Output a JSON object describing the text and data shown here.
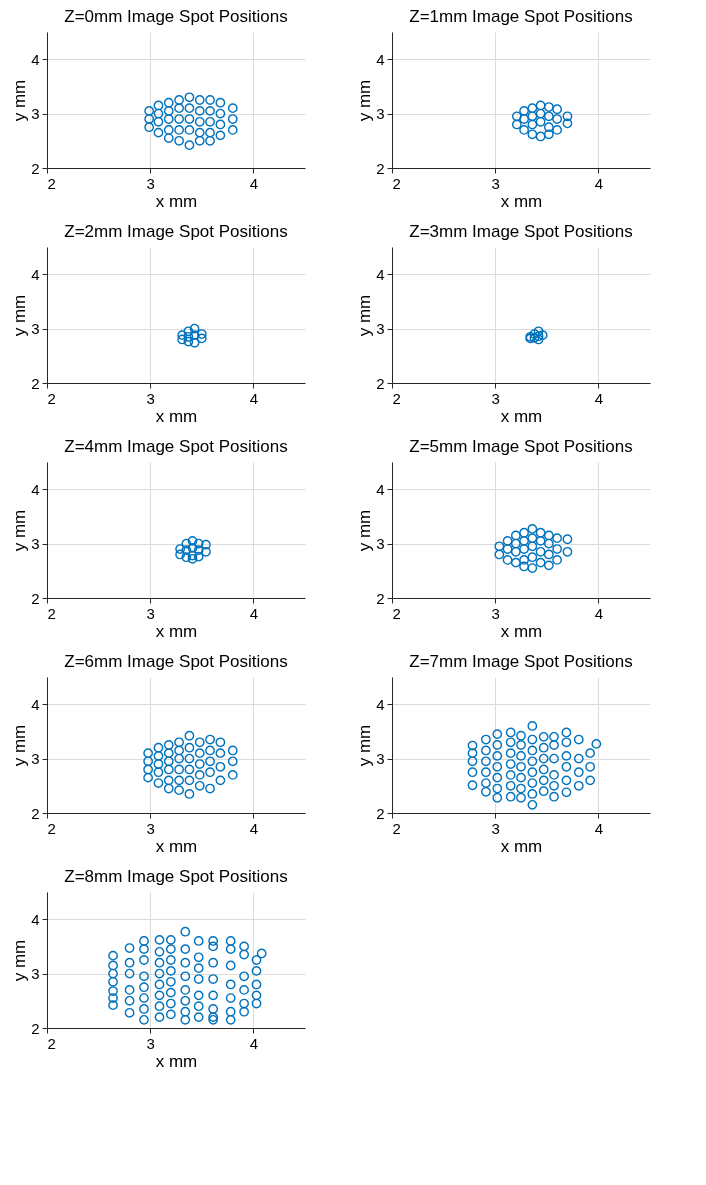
{
  "chart_data": [
    {
      "type": "scatter",
      "title": "Z=0mm Image Spot Positions",
      "xlabel": "x mm",
      "ylabel": "y mm",
      "xlim": [
        2,
        4.5
      ],
      "ylim": [
        2,
        4.5
      ],
      "xticks": [
        2,
        3,
        4
      ],
      "yticks": [
        2,
        3,
        4
      ],
      "grid": true,
      "marker": "circle",
      "color": "#0072bd",
      "x": [
        2.99,
        2.99,
        2.99,
        3.08,
        3.08,
        3.08,
        3.08,
        3.18,
        3.18,
        3.18,
        3.18,
        3.18,
        3.28,
        3.28,
        3.28,
        3.28,
        3.28,
        3.38,
        3.38,
        3.38,
        3.38,
        3.38,
        3.48,
        3.48,
        3.48,
        3.48,
        3.48,
        3.58,
        3.58,
        3.58,
        3.58,
        3.58,
        3.68,
        3.68,
        3.68,
        3.68,
        3.8,
        3.8,
        3.8
      ],
      "values": [
        3.05,
        2.9,
        2.75,
        3.15,
        3.0,
        2.85,
        2.65,
        3.2,
        3.05,
        2.9,
        2.7,
        2.55,
        3.25,
        3.1,
        2.9,
        2.7,
        2.5,
        3.3,
        3.1,
        2.9,
        2.7,
        2.42,
        3.25,
        3.05,
        2.85,
        2.65,
        2.5,
        3.25,
        3.05,
        2.85,
        2.65,
        2.5,
        3.2,
        3.0,
        2.8,
        2.6,
        3.1,
        2.9,
        2.7
      ]
    },
    {
      "type": "scatter",
      "title": "Z=1mm Image Spot Positions",
      "xlabel": "x mm",
      "ylabel": "y mm",
      "xlim": [
        2,
        4.5
      ],
      "ylim": [
        2,
        4.5
      ],
      "xticks": [
        2,
        3,
        4
      ],
      "yticks": [
        2,
        3,
        4
      ],
      "grid": true,
      "marker": "circle",
      "color": "#0072bd",
      "x": [
        3.21,
        3.21,
        3.28,
        3.28,
        3.28,
        3.36,
        3.36,
        3.36,
        3.36,
        3.44,
        3.44,
        3.44,
        3.44,
        3.52,
        3.52,
        3.52,
        3.52,
        3.6,
        3.6,
        3.6,
        3.7,
        3.7
      ],
      "values": [
        2.95,
        2.8,
        3.05,
        2.9,
        2.7,
        3.1,
        2.95,
        2.8,
        2.62,
        3.15,
        3.0,
        2.85,
        2.58,
        3.12,
        2.95,
        2.75,
        2.62,
        3.08,
        2.9,
        2.7,
        2.95,
        2.82
      ]
    },
    {
      "type": "scatter",
      "title": "Z=2mm Image Spot Positions",
      "xlabel": "x mm",
      "ylabel": "y mm",
      "xlim": [
        2,
        4.5
      ],
      "ylim": [
        2,
        4.5
      ],
      "xticks": [
        2,
        3,
        4
      ],
      "yticks": [
        2,
        3,
        4
      ],
      "grid": true,
      "marker": "circle",
      "color": "#0072bd",
      "x": [
        3.31,
        3.31,
        3.37,
        3.37,
        3.37,
        3.43,
        3.43,
        3.43,
        3.5,
        3.5
      ],
      "values": [
        2.88,
        2.8,
        2.95,
        2.85,
        2.76,
        3.0,
        2.88,
        2.74,
        2.9,
        2.82
      ]
    },
    {
      "type": "scatter",
      "title": "Z=3mm Image Spot Positions",
      "xlabel": "x mm",
      "ylabel": "y mm",
      "xlim": [
        2,
        4.5
      ],
      "ylim": [
        2,
        4.5
      ],
      "xticks": [
        2,
        3,
        4
      ],
      "yticks": [
        2,
        3,
        4
      ],
      "grid": true,
      "marker": "circle",
      "color": "#0072bd",
      "x": [
        3.34,
        3.34,
        3.38,
        3.38,
        3.42,
        3.42,
        3.42,
        3.46
      ],
      "values": [
        2.85,
        2.82,
        2.9,
        2.83,
        2.95,
        2.86,
        2.8,
        2.88
      ]
    },
    {
      "type": "scatter",
      "title": "Z=4mm Image Spot Positions",
      "xlabel": "x mm",
      "ylabel": "y mm",
      "xlim": [
        2,
        4.5
      ],
      "ylim": [
        2,
        4.5
      ],
      "xticks": [
        2,
        3,
        4
      ],
      "yticks": [
        2,
        3,
        4
      ],
      "grid": true,
      "marker": "circle",
      "color": "#0072bd",
      "x": [
        3.29,
        3.29,
        3.35,
        3.35,
        3.35,
        3.41,
        3.41,
        3.41,
        3.41,
        3.47,
        3.47,
        3.47,
        3.54,
        3.54
      ],
      "values": [
        2.9,
        2.8,
        3.0,
        2.88,
        2.75,
        3.05,
        2.92,
        2.78,
        2.72,
        3.0,
        2.88,
        2.76,
        2.98,
        2.85
      ]
    },
    {
      "type": "scatter",
      "title": "Z=5mm Image Spot Positions",
      "xlabel": "x mm",
      "ylabel": "y mm",
      "xlim": [
        2,
        4.5
      ],
      "ylim": [
        2,
        4.5
      ],
      "xticks": [
        2,
        3,
        4
      ],
      "yticks": [
        2,
        3,
        4
      ],
      "grid": true,
      "marker": "circle",
      "color": "#0072bd",
      "x": [
        3.04,
        3.04,
        3.12,
        3.12,
        3.12,
        3.2,
        3.2,
        3.2,
        3.2,
        3.28,
        3.28,
        3.28,
        3.28,
        3.28,
        3.36,
        3.36,
        3.36,
        3.36,
        3.36,
        3.44,
        3.44,
        3.44,
        3.44,
        3.52,
        3.52,
        3.52,
        3.52,
        3.6,
        3.6,
        3.6,
        3.7,
        3.7
      ],
      "values": [
        2.95,
        2.8,
        3.05,
        2.9,
        2.7,
        3.15,
        3.0,
        2.85,
        2.65,
        3.2,
        3.05,
        2.9,
        2.7,
        2.58,
        3.27,
        3.1,
        2.95,
        2.75,
        2.55,
        3.2,
        3.05,
        2.85,
        2.65,
        3.15,
        3.0,
        2.8,
        2.6,
        3.1,
        2.9,
        2.7,
        3.08,
        2.85
      ]
    },
    {
      "type": "scatter",
      "title": "Z=6mm Image Spot Positions",
      "xlabel": "x mm",
      "ylabel": "y mm",
      "xlim": [
        2,
        4.5
      ],
      "ylim": [
        2,
        4.5
      ],
      "xticks": [
        2,
        3,
        4
      ],
      "yticks": [
        2,
        3,
        4
      ],
      "grid": true,
      "marker": "circle",
      "color": "#0072bd",
      "x": [
        2.98,
        2.98,
        2.98,
        2.98,
        3.08,
        3.08,
        3.08,
        3.08,
        3.08,
        3.18,
        3.18,
        3.18,
        3.18,
        3.18,
        3.18,
        3.28,
        3.28,
        3.28,
        3.28,
        3.28,
        3.28,
        3.38,
        3.38,
        3.38,
        3.38,
        3.38,
        3.38,
        3.48,
        3.48,
        3.48,
        3.48,
        3.48,
        3.58,
        3.58,
        3.58,
        3.58,
        3.58,
        3.68,
        3.68,
        3.68,
        3.68,
        3.8,
        3.8,
        3.8
      ],
      "values": [
        3.1,
        2.95,
        2.8,
        2.65,
        3.2,
        3.05,
        2.9,
        2.75,
        2.55,
        3.25,
        3.1,
        2.95,
        2.8,
        2.6,
        2.45,
        3.3,
        3.15,
        3.0,
        2.8,
        2.6,
        2.42,
        3.42,
        3.2,
        3.0,
        2.8,
        2.6,
        2.35,
        3.3,
        3.1,
        2.9,
        2.7,
        2.5,
        3.35,
        3.15,
        2.95,
        2.75,
        2.45,
        3.3,
        3.1,
        2.85,
        2.6,
        3.15,
        2.95,
        2.7
      ]
    },
    {
      "type": "scatter",
      "title": "Z=7mm Image Spot Positions",
      "xlabel": "x mm",
      "ylabel": "y mm",
      "xlim": [
        2,
        4.5
      ],
      "ylim": [
        2,
        4.5
      ],
      "xticks": [
        2,
        3,
        4
      ],
      "yticks": [
        2,
        3,
        4
      ],
      "grid": true,
      "marker": "circle",
      "color": "#0072bd",
      "x": [
        2.78,
        2.78,
        2.78,
        2.78,
        2.78,
        2.91,
        2.91,
        2.91,
        2.91,
        2.91,
        2.91,
        3.02,
        3.02,
        3.02,
        3.02,
        3.02,
        3.02,
        3.02,
        3.15,
        3.15,
        3.15,
        3.15,
        3.15,
        3.15,
        3.15,
        3.25,
        3.25,
        3.25,
        3.25,
        3.25,
        3.25,
        3.25,
        3.36,
        3.36,
        3.36,
        3.36,
        3.36,
        3.36,
        3.36,
        3.36,
        3.47,
        3.47,
        3.47,
        3.47,
        3.47,
        3.47,
        3.57,
        3.57,
        3.57,
        3.57,
        3.57,
        3.57,
        3.69,
        3.69,
        3.69,
        3.69,
        3.69,
        3.69,
        3.81,
        3.81,
        3.81,
        3.81,
        3.92,
        3.92,
        3.92,
        3.98
      ],
      "values": [
        3.24,
        3.1,
        2.95,
        2.75,
        2.51,
        3.35,
        3.15,
        2.95,
        2.75,
        2.55,
        2.39,
        3.45,
        3.25,
        3.05,
        2.85,
        2.65,
        2.45,
        2.28,
        3.48,
        3.3,
        3.1,
        2.9,
        2.7,
        2.5,
        2.3,
        3.42,
        3.25,
        3.05,
        2.85,
        2.65,
        2.45,
        2.28,
        3.6,
        3.35,
        3.15,
        2.95,
        2.75,
        2.55,
        2.35,
        2.15,
        3.4,
        3.2,
        3.0,
        2.8,
        2.6,
        2.4,
        3.4,
        3.25,
        3.0,
        2.7,
        2.5,
        2.3,
        3.48,
        3.3,
        3.05,
        2.85,
        2.6,
        2.38,
        3.35,
        3.0,
        2.75,
        2.5,
        3.1,
        2.85,
        2.6,
        3.27
      ]
    },
    {
      "type": "scatter",
      "title": "Z=8mm Image Spot Positions",
      "xlabel": "x mm",
      "ylabel": "y mm",
      "xlim": [
        2,
        4.5
      ],
      "ylim": [
        2,
        4.5
      ],
      "xticks": [
        2,
        3,
        4
      ],
      "yticks": [
        2,
        3,
        4
      ],
      "grid": true,
      "marker": "circle",
      "color": "#0072bd",
      "x": [
        2.64,
        2.64,
        2.64,
        2.64,
        2.64,
        2.64,
        2.64,
        2.8,
        2.8,
        2.8,
        2.8,
        2.8,
        2.8,
        2.94,
        2.94,
        2.94,
        2.94,
        2.94,
        2.94,
        2.94,
        2.94,
        3.09,
        3.09,
        3.09,
        3.09,
        3.09,
        3.09,
        3.09,
        3.09,
        3.2,
        3.2,
        3.2,
        3.2,
        3.2,
        3.2,
        3.2,
        3.2,
        3.34,
        3.34,
        3.34,
        3.34,
        3.34,
        3.34,
        3.34,
        3.34,
        3.47,
        3.47,
        3.47,
        3.47,
        3.47,
        3.47,
        3.47,
        3.61,
        3.61,
        3.61,
        3.61,
        3.61,
        3.61,
        3.61,
        3.61,
        3.78,
        3.78,
        3.78,
        3.78,
        3.78,
        3.78,
        3.78,
        3.91,
        3.91,
        3.91,
        3.91,
        3.91,
        3.91,
        4.03,
        4.03,
        4.03,
        4.03,
        4.03,
        4.08
      ],
      "values": [
        3.33,
        3.15,
        3.0,
        2.85,
        2.68,
        2.55,
        2.42,
        3.47,
        3.2,
        3.0,
        2.7,
        2.5,
        2.28,
        3.6,
        3.45,
        3.25,
        2.95,
        2.75,
        2.55,
        2.35,
        2.15,
        3.62,
        3.4,
        3.2,
        3.0,
        2.8,
        2.6,
        2.4,
        2.2,
        3.62,
        3.45,
        3.25,
        3.05,
        2.85,
        2.65,
        2.45,
        2.25,
        3.77,
        3.45,
        3.2,
        2.95,
        2.7,
        2.5,
        2.3,
        2.15,
        3.6,
        3.3,
        3.1,
        2.9,
        2.6,
        2.4,
        2.2,
        3.6,
        3.5,
        3.2,
        2.9,
        2.6,
        2.35,
        2.2,
        2.15,
        3.6,
        3.45,
        3.15,
        2.8,
        2.55,
        2.3,
        2.15,
        3.5,
        3.35,
        2.95,
        2.7,
        2.45,
        2.3,
        3.25,
        3.05,
        2.8,
        2.6,
        2.45,
        3.37
      ]
    }
  ]
}
